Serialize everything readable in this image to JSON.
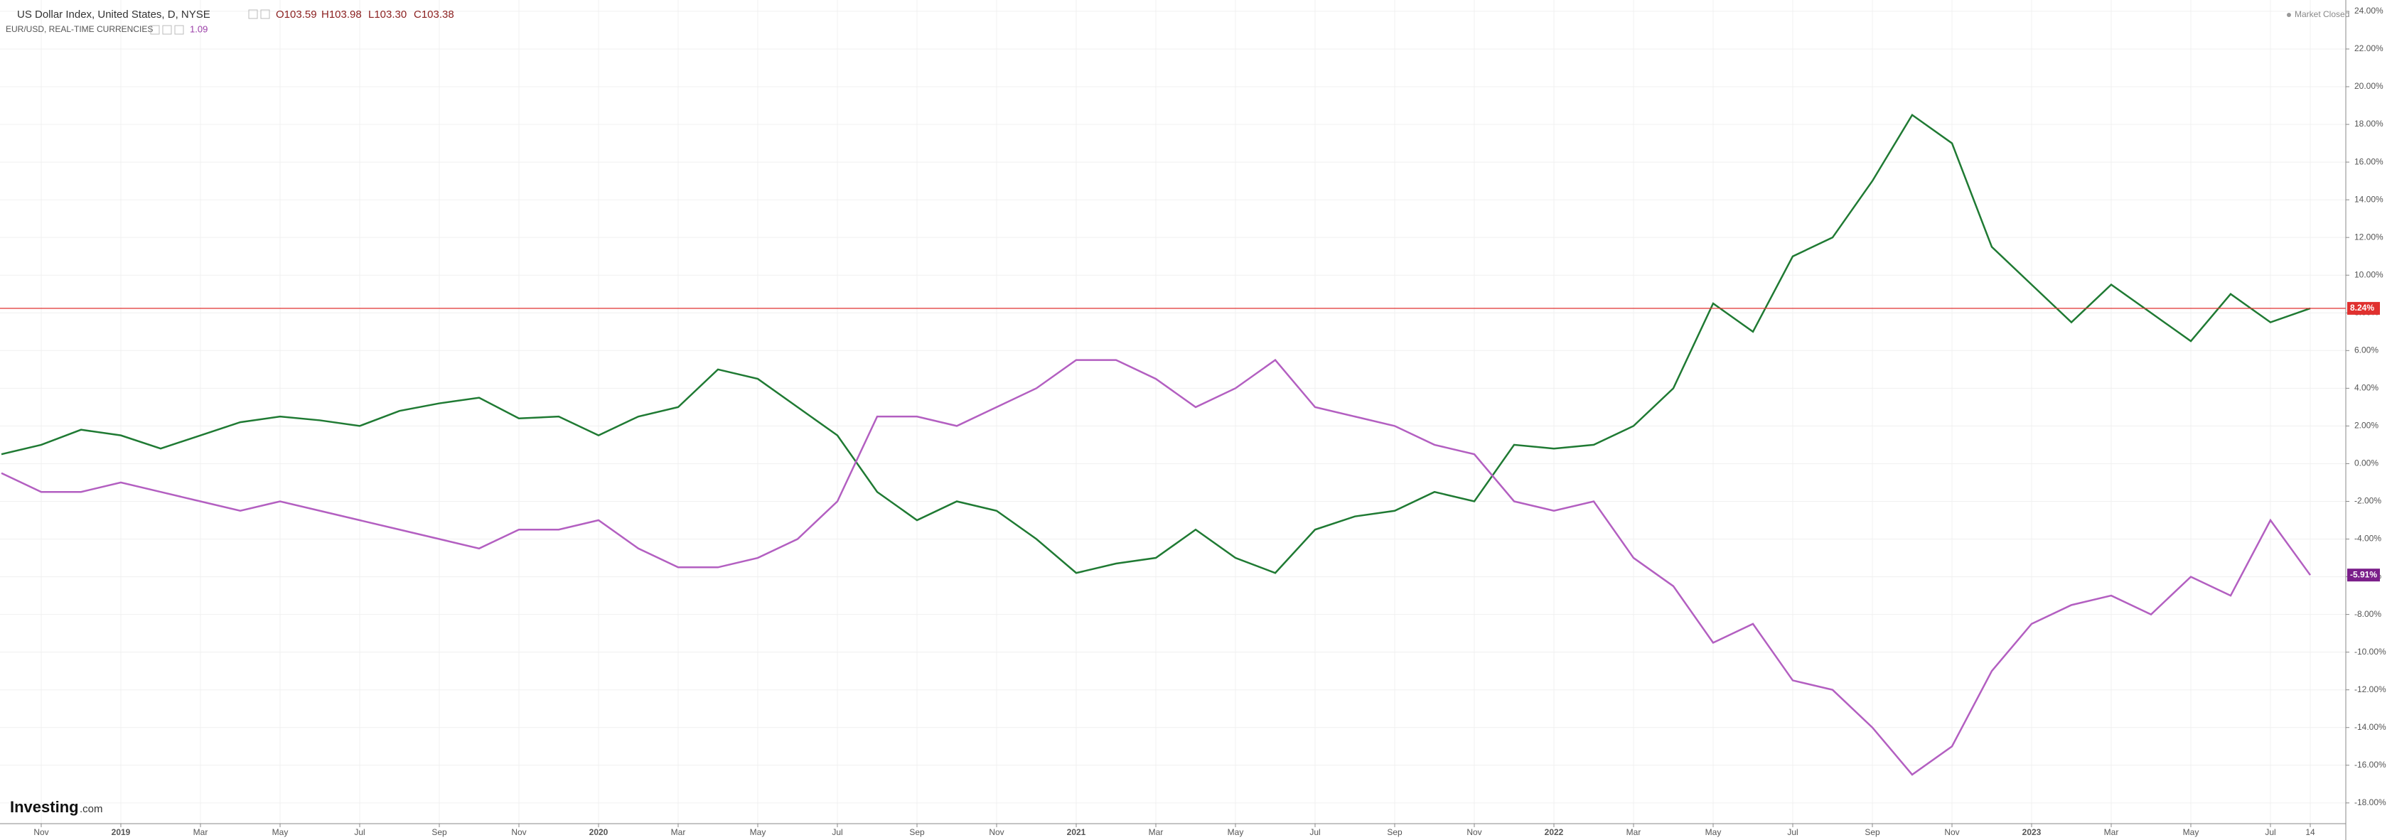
{
  "header": {
    "symbol": "US Dollar Index, United States, D, NYSE",
    "open": "O103.59",
    "high": "H103.98",
    "low": "L103.30",
    "close": "C103.38",
    "compare_symbol": "EUR/USD, REAL-TIME CURRENCIES",
    "compare_value": "1.09",
    "status": "Market Closed",
    "logo": {
      "brand": "Investing",
      "suffix": ".com"
    }
  },
  "chart_data": {
    "type": "line",
    "categories": [
      null,
      "Nov",
      null,
      "2019",
      null,
      "Mar",
      null,
      "May",
      null,
      "Jul",
      null,
      "Sep",
      null,
      "Nov",
      null,
      "2020",
      null,
      "Mar",
      null,
      "May",
      null,
      "Jul",
      null,
      "Sep",
      null,
      "Nov",
      null,
      "2021",
      null,
      "Mar",
      null,
      "May",
      null,
      "Jul",
      null,
      "Sep",
      null,
      "Nov",
      null,
      "2022",
      null,
      "Mar",
      null,
      "May",
      null,
      "Jul",
      null,
      "Sep",
      null,
      "Nov",
      null,
      "2023",
      null,
      "Mar",
      null,
      "May",
      null,
      "Jul",
      "14"
    ],
    "series": [
      {
        "name": "US Dollar Index",
        "color": "#1f7a33",
        "values": [
          0.5,
          1.0,
          1.8,
          1.5,
          0.8,
          1.5,
          2.2,
          2.5,
          2.3,
          2.0,
          2.8,
          3.2,
          3.5,
          2.4,
          2.5,
          1.5,
          2.5,
          3.0,
          5.0,
          4.5,
          3.0,
          1.5,
          -1.5,
          -3.0,
          -2.0,
          -2.5,
          -4.0,
          -5.8,
          -5.3,
          -5.0,
          -3.5,
          -5.0,
          -5.8,
          -3.5,
          -2.8,
          -2.5,
          -1.5,
          -2.0,
          1.0,
          0.8,
          1.0,
          2.0,
          4.0,
          8.5,
          7.0,
          11.0,
          12.0,
          15.0,
          18.5,
          17.0,
          11.5,
          9.5,
          7.5,
          9.5,
          8.0,
          6.5,
          9.0,
          7.5,
          8.24
        ],
        "value_labels": [
          null,
          null,
          null,
          null,
          null,
          null,
          null,
          null,
          null,
          null,
          null,
          null,
          null,
          null,
          null,
          null,
          null,
          null,
          null,
          null,
          null,
          null,
          null,
          null,
          null,
          null,
          null,
          null,
          null,
          null,
          null,
          null,
          null,
          null,
          null,
          null,
          null,
          null,
          null,
          null,
          null,
          null,
          null,
          null,
          null,
          null,
          null,
          null,
          null,
          null,
          null,
          null,
          null,
          null,
          null,
          null,
          null,
          null,
          "8.24%"
        ],
        "tag_color": "#e0312f"
      },
      {
        "name": "EUR/USD",
        "color": "#b35fc1",
        "values": [
          -0.5,
          -1.5,
          -1.5,
          -1.0,
          -1.5,
          -2.0,
          -2.5,
          -2.0,
          -2.5,
          -3.0,
          -3.5,
          -4.0,
          -4.5,
          -3.5,
          -3.5,
          -3.0,
          -4.5,
          -5.5,
          -5.5,
          -5.0,
          -4.0,
          -2.0,
          2.5,
          2.5,
          2.0,
          3.0,
          4.0,
          5.5,
          5.5,
          4.5,
          3.0,
          4.0,
          5.5,
          3.0,
          2.5,
          2.0,
          1.0,
          0.5,
          -2.0,
          -2.5,
          -2.0,
          -5.0,
          -6.5,
          -9.5,
          -8.5,
          -11.5,
          -12.0,
          -14.0,
          -16.5,
          -15.0,
          -11.0,
          -8.5,
          -7.5,
          -7.0,
          -8.0,
          -6.0,
          -7.0,
          -3.0,
          -5.91
        ],
        "value_labels": [
          null,
          null,
          null,
          null,
          null,
          null,
          null,
          null,
          null,
          null,
          null,
          null,
          null,
          null,
          null,
          null,
          null,
          null,
          null,
          null,
          null,
          null,
          null,
          null,
          null,
          null,
          null,
          null,
          null,
          null,
          null,
          null,
          null,
          null,
          null,
          null,
          null,
          null,
          null,
          null,
          null,
          null,
          null,
          null,
          null,
          null,
          null,
          null,
          null,
          null,
          null,
          null,
          null,
          null,
          null,
          null,
          null,
          null,
          "-5.91%"
        ],
        "tag_color": "#7b1f8a"
      }
    ],
    "ylim": [
      -19.1,
      24.6
    ],
    "yticks": [
      {
        "value": 24,
        "label": "24.00%"
      },
      {
        "value": 22,
        "label": "22.00%"
      },
      {
        "value": 20,
        "label": "20.00%"
      },
      {
        "value": 18,
        "label": "18.00%"
      },
      {
        "value": 16,
        "label": "16.00%"
      },
      {
        "value": 14,
        "label": "14.00%"
      },
      {
        "value": 12,
        "label": "12.00%"
      },
      {
        "value": 10,
        "label": "10.00%"
      },
      {
        "value": 8,
        "label": "8.00%"
      },
      {
        "value": 6,
        "label": "6.00%"
      },
      {
        "value": 4,
        "label": "4.00%"
      },
      {
        "value": 2,
        "label": "2.00%"
      },
      {
        "value": 0,
        "label": "0.00%"
      },
      {
        "value": -2,
        "label": "-2.00%"
      },
      {
        "value": -4,
        "label": "-4.00%"
      },
      {
        "value": -6,
        "label": "-6.00%"
      },
      {
        "value": -8,
        "label": "-8.00%"
      },
      {
        "value": -10,
        "label": "-10.00%"
      },
      {
        "value": -12,
        "label": "-12.00%"
      },
      {
        "value": -14,
        "label": "-14.00%"
      },
      {
        "value": -16,
        "label": "-16.00%"
      },
      {
        "value": -18,
        "label": "-18.00%"
      }
    ],
    "grid": true
  }
}
